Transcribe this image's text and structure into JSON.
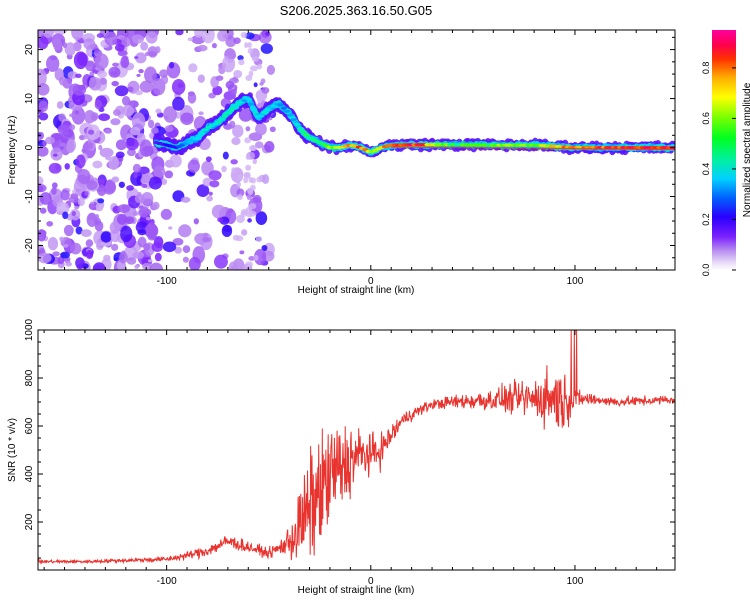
{
  "chart_data": [
    {
      "type": "heatmap",
      "title": "S206.2025.363.16.50.G05",
      "xlabel": "Height of straight line (km)",
      "ylabel": "Frequency (Hz)",
      "xlim": [
        -163,
        149
      ],
      "ylim": [
        -25,
        24
      ],
      "xticks": [
        -100,
        0,
        100
      ],
      "yticks": [
        -20,
        -10,
        0,
        10,
        20
      ],
      "xtick_labels": [
        "-100",
        "0",
        "100"
      ],
      "ytick_labels": [
        "-20",
        "-10",
        "0",
        "10",
        "20"
      ],
      "colorbar": {
        "label": "Normalized spectral amplitude",
        "range": [
          0.0,
          0.95
        ],
        "ticks": [
          0.0,
          0.2,
          0.4,
          0.6,
          0.8
        ],
        "tick_labels": [
          "0.0",
          "0.2",
          "0.4",
          "0.6",
          "0.8"
        ]
      },
      "ridge": {
        "x": [
          -105,
          -95,
          -90,
          -85,
          -80,
          -75,
          -70,
          -65,
          -60,
          -55,
          -50,
          -45,
          -40,
          -35,
          -30,
          -25,
          -20,
          -15,
          -10,
          -5,
          0,
          5,
          10,
          20,
          40,
          60,
          80,
          100,
          120,
          149
        ],
        "y": [
          1,
          0,
          1,
          2,
          4,
          5,
          7,
          9,
          10,
          6,
          8,
          9,
          7,
          4,
          2,
          1,
          0,
          0,
          0.5,
          0,
          -1,
          0,
          0.5,
          0.6,
          0.6,
          0.5,
          0.5,
          0,
          0,
          0
        ],
        "amp": [
          0.2,
          0.25,
          0.4,
          0.45,
          0.5,
          0.45,
          0.5,
          0.45,
          0.4,
          0.45,
          0.45,
          0.4,
          0.35,
          0.45,
          0.55,
          0.5,
          0.65,
          0.7,
          0.75,
          0.8,
          0.65,
          0.75,
          0.85,
          0.9,
          0.55,
          0.6,
          0.6,
          0.8,
          0.85,
          0.9
        ]
      }
    },
    {
      "type": "line",
      "xlabel": "Height of straight line (km)",
      "ylabel": "SNR (10 * v/v)",
      "xlim": [
        -163,
        149
      ],
      "ylim": [
        0,
        1000
      ],
      "xticks": [
        -100,
        0,
        100
      ],
      "yticks": [
        200,
        400,
        600,
        800,
        1000
      ],
      "xtick_labels": [
        "-100",
        "0",
        "100"
      ],
      "ytick_labels": [
        "200",
        "400",
        "600",
        "800",
        "1000"
      ],
      "series": [
        {
          "name": "SNR",
          "color": "#e8332e",
          "x": [
            -163,
            -140,
            -120,
            -100,
            -90,
            -80,
            -70,
            -60,
            -50,
            -45,
            -40,
            -35,
            -30,
            -25,
            -20,
            -15,
            -10,
            -5,
            0,
            5,
            10,
            15,
            20,
            25,
            30,
            40,
            60,
            80,
            90,
            95,
            100,
            110,
            120,
            149
          ],
          "values": [
            35,
            35,
            40,
            45,
            60,
            80,
            120,
            95,
            70,
            90,
            120,
            170,
            260,
            320,
            390,
            420,
            460,
            480,
            480,
            500,
            560,
            620,
            650,
            670,
            690,
            700,
            710,
            715,
            720,
            700,
            715,
            710,
            700,
            710
          ],
          "noise": [
            10,
            10,
            12,
            15,
            25,
            35,
            45,
            35,
            30,
            45,
            100,
            260,
            330,
            340,
            330,
            300,
            220,
            160,
            120,
            100,
            70,
            50,
            40,
            35,
            30,
            40,
            70,
            120,
            220,
            170,
            60,
            30,
            30,
            25
          ]
        }
      ]
    }
  ]
}
